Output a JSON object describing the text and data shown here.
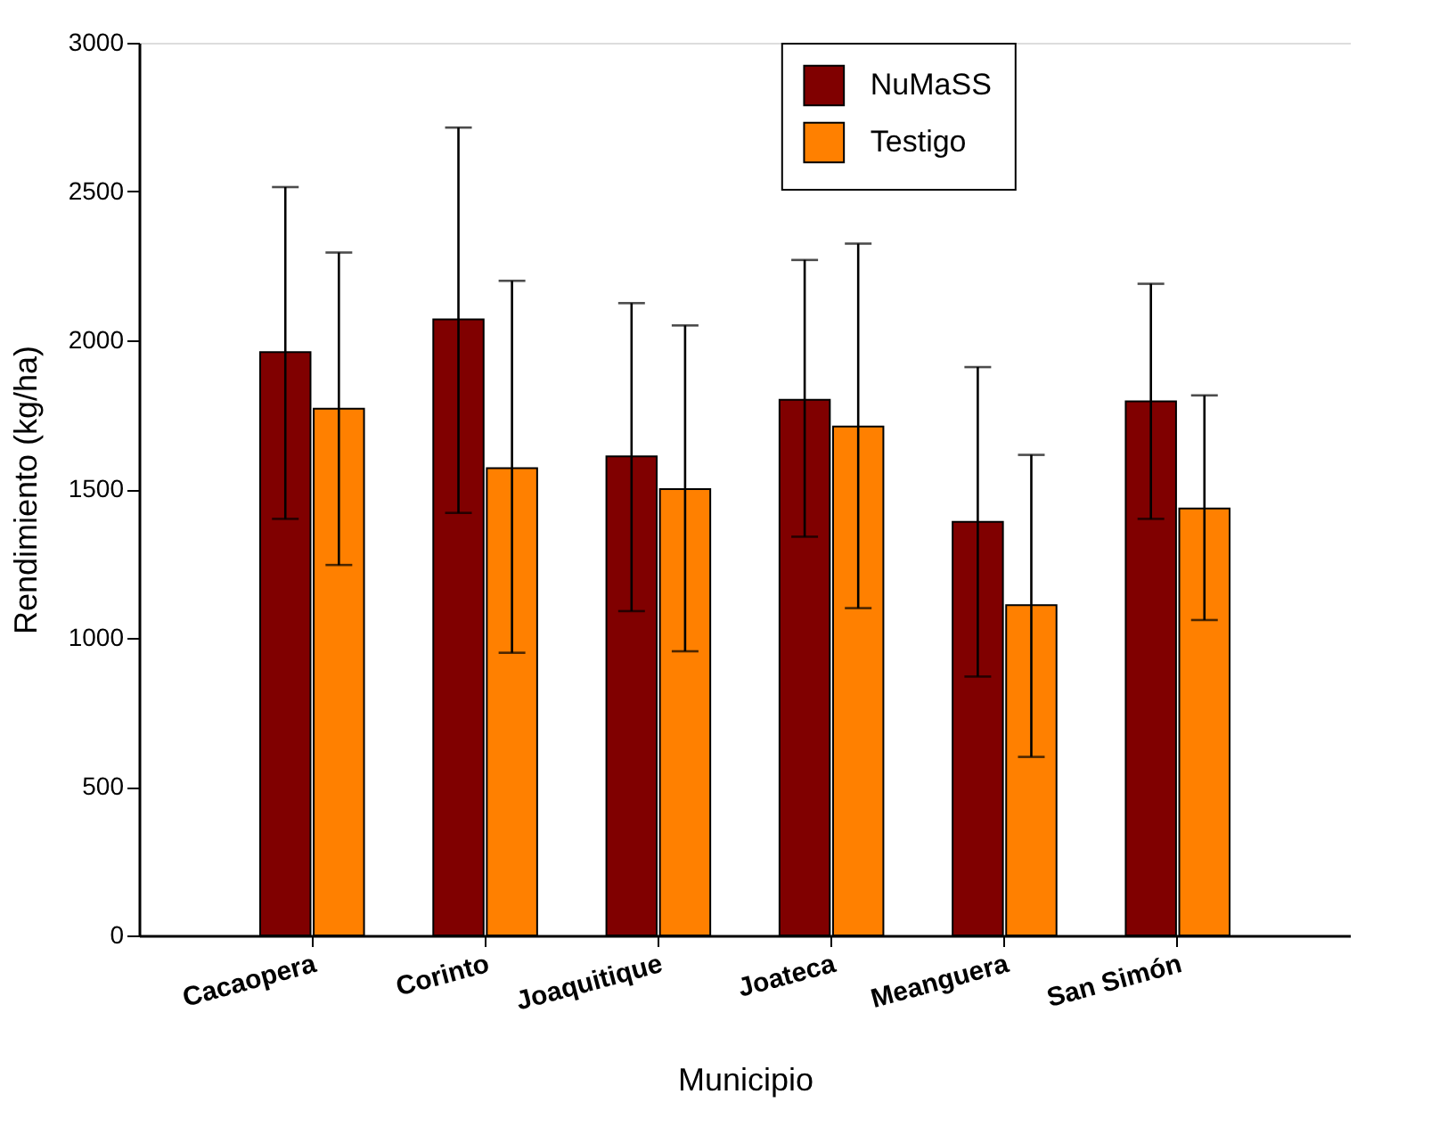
{
  "chart_data": {
    "type": "bar",
    "xlabel": "Municipio",
    "ylabel": "Rendimiento (kg/ha)",
    "categories": [
      "Cacaopera",
      "Corinto",
      "Joaquitique",
      "Joateca",
      "Meanguera",
      "San Simón"
    ],
    "series": [
      {
        "name": "NuMaSS",
        "color": "#800000",
        "values": [
          1960,
          2070,
          1610,
          1800,
          1390,
          1795
        ],
        "errors": [
          [
            1400,
            2515
          ],
          [
            1420,
            2715
          ],
          [
            1090,
            2125
          ],
          [
            1340,
            2270
          ],
          [
            870,
            1910
          ],
          [
            1400,
            2190
          ]
        ]
      },
      {
        "name": "Testigo",
        "color": "#ff8000",
        "values": [
          1770,
          1570,
          1500,
          1710,
          1110,
          1435
        ],
        "errors": [
          [
            1245,
            2295
          ],
          [
            950,
            2200
          ],
          [
            955,
            2050
          ],
          [
            1100,
            2325
          ],
          [
            600,
            1615
          ],
          [
            1060,
            1815
          ]
        ]
      }
    ],
    "ylim": [
      0,
      3000
    ],
    "yticks": [
      0,
      500,
      1000,
      1500,
      2000,
      2500,
      3000
    ],
    "grid": false,
    "legend": "top right"
  }
}
